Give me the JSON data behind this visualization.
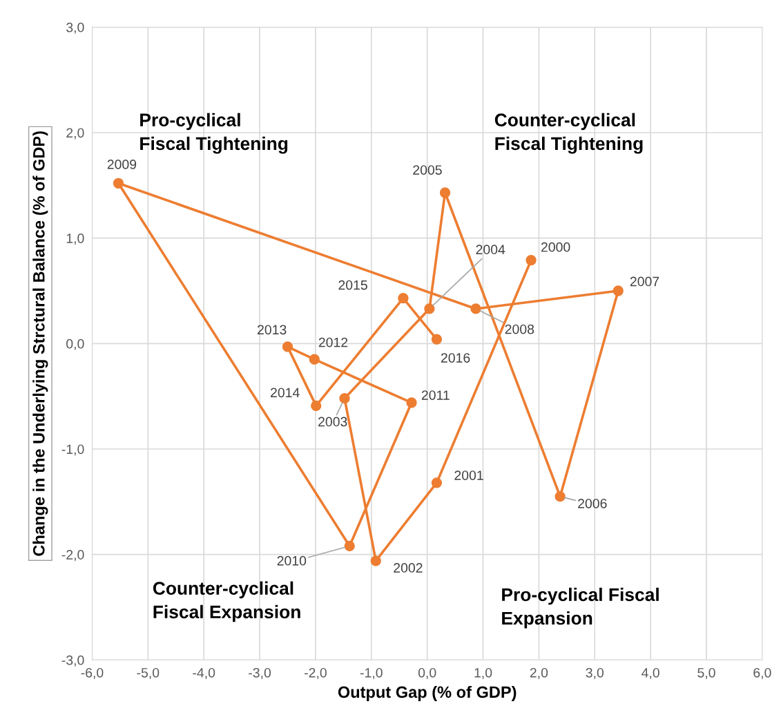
{
  "chart_data": {
    "type": "line",
    "xlabel": "Output Gap (% of GDP)",
    "ylabel": "Change in the Underlying Strctural Balance (% of GDP)",
    "series": [
      {
        "color": "#ed7d31",
        "x": [
          1.86,
          0.17,
          -0.92,
          -1.48,
          0.04,
          0.32,
          2.38,
          3.42,
          0.87,
          -5.53,
          -1.39,
          -0.28,
          -2.02,
          -2.5,
          -1.99,
          -0.43,
          0.17
        ],
        "values": [
          0.79,
          -1.32,
          -2.06,
          -0.52,
          0.33,
          1.43,
          -1.45,
          0.5,
          0.33,
          1.52,
          -1.92,
          -0.56,
          -0.15,
          -0.03,
          -0.59,
          0.43,
          0.04
        ]
      }
    ],
    "marker": "circle",
    "line_style": "solid",
    "grid": true,
    "xlim": [
      -6,
      6
    ],
    "ylim": [
      -3,
      3
    ],
    "xticks": [
      {
        "value": -6,
        "label": "-6,0"
      },
      {
        "value": -5,
        "label": "-5,0"
      },
      {
        "value": -4,
        "label": "-4,0"
      },
      {
        "value": -3,
        "label": "-3,0"
      },
      {
        "value": -2,
        "label": "-2,0"
      },
      {
        "value": -1,
        "label": "-1,0"
      },
      {
        "value": 0,
        "label": "0,0"
      },
      {
        "value": 1,
        "label": "1,0"
      },
      {
        "value": 2,
        "label": "2,0"
      },
      {
        "value": 3,
        "label": "3,0"
      },
      {
        "value": 4,
        "label": "4,0"
      },
      {
        "value": 5,
        "label": "5,0"
      },
      {
        "value": 6,
        "label": "6,0"
      }
    ],
    "yticks": [
      {
        "value": -3,
        "label": "-3,0"
      },
      {
        "value": -2,
        "label": "-2,0"
      },
      {
        "value": -1,
        "label": "-1,0"
      },
      {
        "value": 0,
        "label": "0,0"
      },
      {
        "value": 1,
        "label": "1,0"
      },
      {
        "value": 2,
        "label": "2,0"
      },
      {
        "value": 3,
        "label": "3,0"
      }
    ],
    "annotations": [
      "Pro-cyclical\nFiscal Tightening",
      "Counter-cyclical\nFiscal Tightening",
      "Counter-cyclical\nFiscal Expansion",
      "Pro-cyclical Fiscal\nExpansion",
      {
        "text": "2000",
        "x": 1.86,
        "y": 0.79
      },
      {
        "text": "2001",
        "x": 0.17,
        "y": -1.32
      },
      {
        "text": "2002",
        "x": -0.92,
        "y": -2.06
      },
      {
        "text": "2003",
        "x": -1.48,
        "y": -0.52
      },
      {
        "text": "2004",
        "x": 0.04,
        "y": 0.33
      },
      {
        "text": "2005",
        "x": 0.32,
        "y": 1.43
      },
      {
        "text": "2006",
        "x": 2.38,
        "y": -1.45
      },
      {
        "text": "2007",
        "x": 3.42,
        "y": 0.5
      },
      {
        "text": "2008",
        "x": 0.87,
        "y": 0.33
      },
      {
        "text": "2009",
        "x": -5.53,
        "y": 1.52
      },
      {
        "text": "2010",
        "x": -1.39,
        "y": -1.92
      },
      {
        "text": "2011",
        "x": -0.28,
        "y": -0.56
      },
      {
        "text": "2012",
        "x": -2.02,
        "y": -0.15
      },
      {
        "text": "2013",
        "x": -2.5,
        "y": -0.03
      },
      {
        "text": "2014",
        "x": -1.99,
        "y": -0.59
      },
      {
        "text": "2015",
        "x": -0.43,
        "y": 0.43
      },
      {
        "text": "2016",
        "x": 0.17,
        "y": 0.04
      }
    ]
  }
}
